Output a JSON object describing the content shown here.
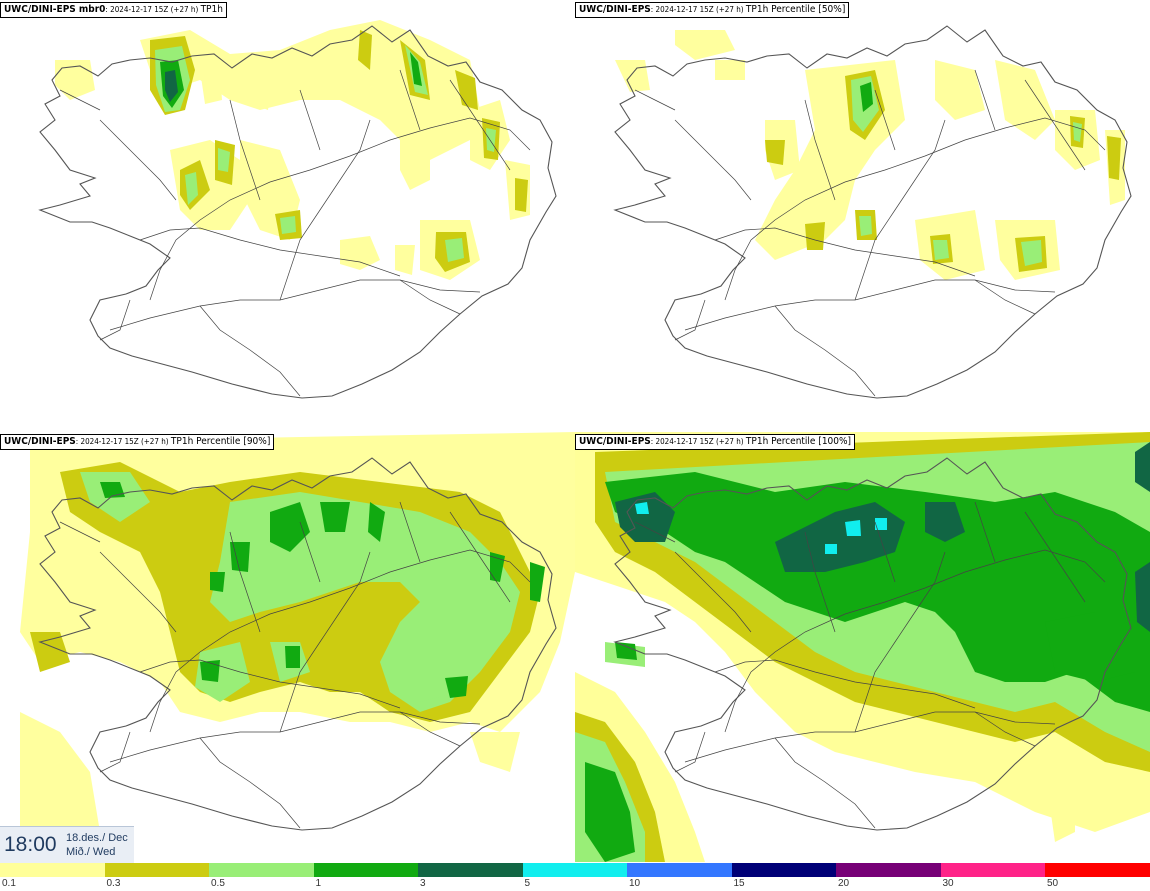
{
  "panels": [
    {
      "model": "UWC/DINI-EPS mbr0",
      "run": "2024-12-17 15Z (+27 h)",
      "field": "TP1h"
    },
    {
      "model": "UWC/DINI-EPS",
      "run": "2024-12-17 15Z (+27 h)",
      "field": "TP1h Percentile [50%]"
    },
    {
      "model": "UWC/DINI-EPS",
      "run": "2024-12-17 15Z (+27 h)",
      "field": "TP1h Percentile [90%]"
    },
    {
      "model": "UWC/DINI-EPS",
      "run": "2024-12-17 15Z (+27 h)",
      "field": "TP1h Percentile [100%]"
    }
  ],
  "valid_time": {
    "time": "18:00",
    "date_line": "18.des./ Dec",
    "day_line": "Mið./ Wed"
  },
  "legend": {
    "thresholds": [
      "0.1",
      "0.3",
      "0.5",
      "1",
      "3",
      "5",
      "10",
      "15",
      "20",
      "30",
      "50"
    ],
    "colors": [
      "#ffff99",
      "#cccc11",
      "#99ee77",
      "#11aa11",
      "#116644",
      "#11eeee",
      "#3377ff",
      "#000077",
      "#770077",
      "#ff2288",
      "#ff0000"
    ]
  },
  "colors": {
    "precip_light": "#ffff99",
    "precip_low": "#cccc11",
    "precip_moderate": "#99ee77",
    "precip_medium": "#11aa11",
    "precip_high": "#116644",
    "precip_heavy": "#11eeee",
    "coastline": "#555555"
  }
}
